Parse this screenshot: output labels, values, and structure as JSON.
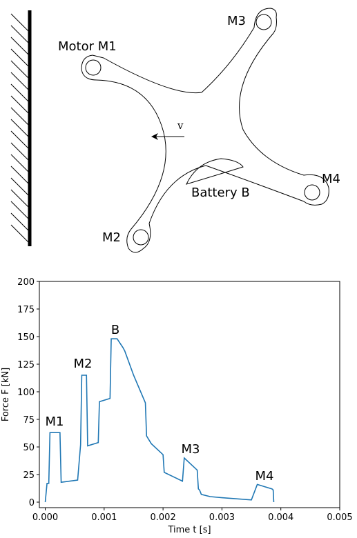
{
  "diagram": {
    "motor_m1": "Motor M1",
    "m2": "M2",
    "m3": "M3",
    "m4": "M4",
    "battery": "Battery B",
    "velocity": "v"
  },
  "chart_data": {
    "type": "line",
    "x": [
      0.0,
      3e-05,
      6e-05,
      8e-05,
      0.00025,
      0.00027,
      0.00055,
      0.0006,
      0.00062,
      0.0007,
      0.00072,
      0.0009,
      0.00092,
      0.0011,
      0.00112,
      0.00122,
      0.00132,
      0.00135,
      0.0015,
      0.0017,
      0.00172,
      0.0018,
      0.002,
      0.00202,
      0.00233,
      0.00236,
      0.00258,
      0.0026,
      0.00262,
      0.00265,
      0.0028,
      0.003,
      0.0035,
      0.0036,
      0.00385,
      0.00387,
      0.00388
    ],
    "values": [
      0,
      17,
      17,
      63,
      63,
      18,
      20,
      52,
      115,
      115,
      51,
      54,
      91,
      94,
      148,
      148,
      140,
      137,
      115,
      90,
      60,
      53,
      43,
      27,
      19,
      40,
      29,
      12,
      11,
      7,
      5,
      4,
      2,
      16,
      12,
      11,
      0
    ],
    "color": "#1f77b4",
    "annotations": [
      "M1",
      "M2",
      "B",
      "M3",
      "M4"
    ],
    "x_label": "Time t [s]",
    "y_label": "Force F [kN]",
    "xlim": [
      -0.0001,
      0.005
    ],
    "xticks": [
      {
        "value": 0,
        "label": "0.000"
      },
      {
        "value": 0.001,
        "label": "0.001"
      },
      {
        "value": 0.002,
        "label": "0.002"
      },
      {
        "value": 0.003,
        "label": "0.003"
      },
      {
        "value": 0.004,
        "label": "0.004"
      },
      {
        "value": 0.005,
        "label": "0.005"
      }
    ],
    "ylim": [
      -5,
      200
    ],
    "yticks": [
      0,
      25,
      50,
      75,
      100,
      125,
      150,
      175,
      200
    ]
  }
}
